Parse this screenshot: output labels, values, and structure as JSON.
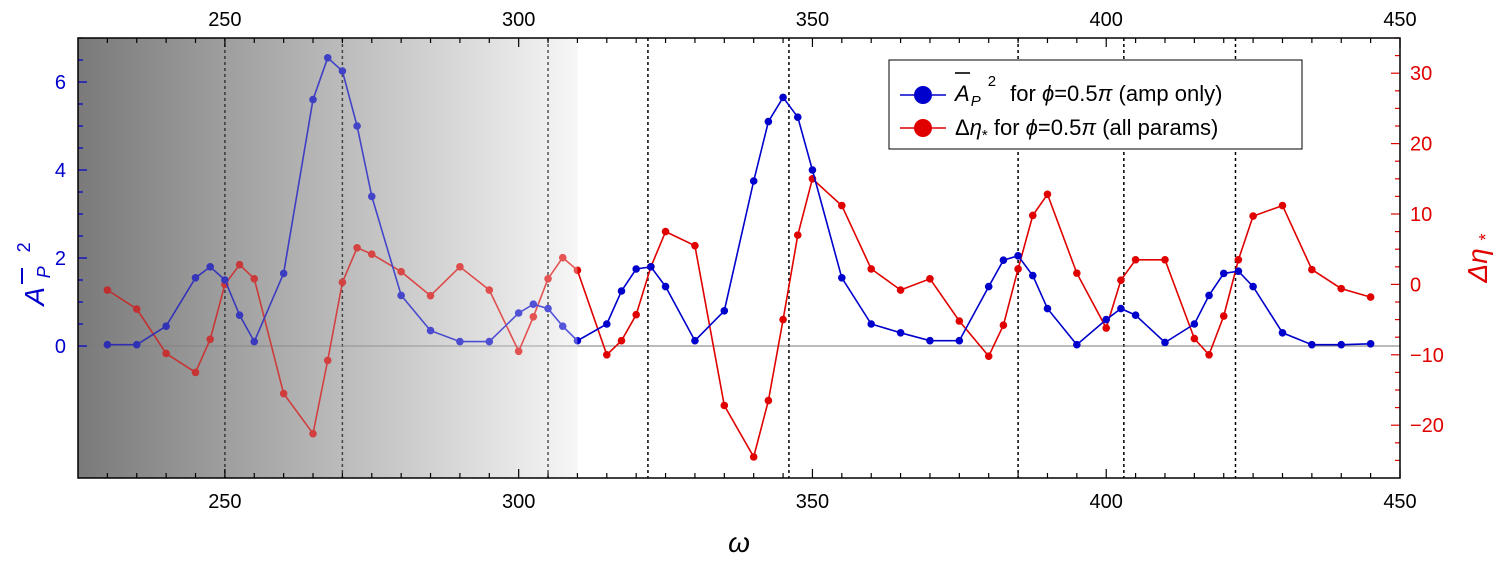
{
  "chart_data": {
    "type": "line",
    "xlabel": "ω",
    "x_range": [
      225,
      450
    ],
    "x_ticks": [
      250,
      300,
      350,
      400,
      450
    ],
    "left_axis": {
      "label_base": "A",
      "label_sub": "P",
      "label_sup": "2",
      "color": "#0000cc",
      "range": [
        -3.0,
        7.0
      ],
      "ticks": [
        0,
        2,
        4,
        6
      ]
    },
    "right_axis": {
      "label_main": "Δη",
      "label_sub": "*",
      "color": "#e00000",
      "range": [
        -27.5,
        35
      ],
      "ticks": [
        -20,
        -10,
        0,
        10,
        20,
        30
      ]
    },
    "shaded_region": {
      "x_start": 225,
      "x_end": 310
    },
    "vertical_lines": [
      250,
      270,
      305,
      322,
      346,
      385,
      403,
      422
    ],
    "legend": {
      "position": "top-right",
      "entries": [
        {
          "label": "A_P^2 for φ=0.5π (amp only)",
          "color": "#0000cc"
        },
        {
          "label": "Δη* for φ=0.5π (all params)",
          "color": "#e00000"
        }
      ]
    },
    "series": [
      {
        "name": "A_P^2 for φ=0.5π (amp only)",
        "axis": "left",
        "color": "#0000cc",
        "x": [
          230,
          235,
          240,
          245,
          247.5,
          250,
          252.5,
          255,
          260,
          265,
          267.5,
          270,
          272.5,
          275,
          280,
          285,
          290,
          295,
          300,
          302.5,
          305,
          307.5,
          310,
          315,
          317.5,
          320,
          322.5,
          325,
          330,
          335,
          340,
          342.5,
          345,
          347.5,
          350,
          355,
          360,
          365,
          370,
          375,
          380,
          382.5,
          385,
          387.5,
          390,
          395,
          400,
          402.5,
          405,
          410,
          415,
          417.5,
          420,
          422.5,
          425,
          430,
          435,
          440,
          445
        ],
        "values": [
          0.03,
          0.03,
          0.45,
          1.55,
          1.8,
          1.5,
          0.7,
          0.1,
          1.65,
          5.6,
          6.55,
          6.25,
          5.0,
          3.4,
          1.15,
          0.35,
          0.1,
          0.1,
          0.75,
          0.95,
          0.85,
          0.45,
          0.12,
          0.5,
          1.25,
          1.75,
          1.8,
          1.35,
          0.12,
          0.8,
          3.75,
          5.1,
          5.65,
          5.2,
          4.0,
          1.55,
          0.5,
          0.3,
          0.12,
          0.12,
          1.35,
          1.95,
          2.05,
          1.6,
          0.85,
          0.03,
          0.6,
          0.85,
          0.7,
          0.08,
          0.5,
          1.15,
          1.65,
          1.7,
          1.35,
          0.3,
          0.03,
          0.03,
          0.05
        ]
      },
      {
        "name": "Δη* for φ=0.5π (all params)",
        "axis": "right",
        "color": "#e00000",
        "x": [
          230,
          235,
          240,
          245,
          247.5,
          250,
          252.5,
          255,
          260,
          265,
          267.5,
          270,
          272.5,
          275,
          280,
          285,
          290,
          295,
          300,
          302.5,
          305,
          307.5,
          310,
          315,
          317.5,
          320,
          322.5,
          325,
          330,
          335,
          340,
          342.5,
          345,
          347.5,
          350,
          355,
          360,
          365,
          370,
          375,
          380,
          382.5,
          385,
          387.5,
          390,
          395,
          400,
          402.5,
          405,
          410,
          415,
          417.5,
          420,
          422.5,
          425,
          430,
          435,
          440,
          445
        ],
        "values": [
          -0.8,
          -3.5,
          -9.8,
          -12.5,
          -7.8,
          0.0,
          2.8,
          0.8,
          -15.5,
          -21.2,
          -10.8,
          0.3,
          5.2,
          4.3,
          1.8,
          -1.6,
          2.5,
          -0.8,
          -9.5,
          -4.6,
          0.8,
          3.8,
          2.0,
          -10.0,
          -8.0,
          -4.3,
          2.5,
          7.5,
          5.5,
          -17.2,
          -24.5,
          -16.5,
          -5.0,
          7.0,
          15.0,
          11.2,
          2.2,
          -0.8,
          0.8,
          -5.2,
          -10.2,
          -5.8,
          2.2,
          9.8,
          12.8,
          1.6,
          -6.2,
          0.6,
          3.5,
          3.5,
          -7.7,
          -10.0,
          -4.5,
          3.5,
          9.7,
          11.2,
          2.1,
          -0.6,
          -1.8
        ]
      }
    ]
  }
}
